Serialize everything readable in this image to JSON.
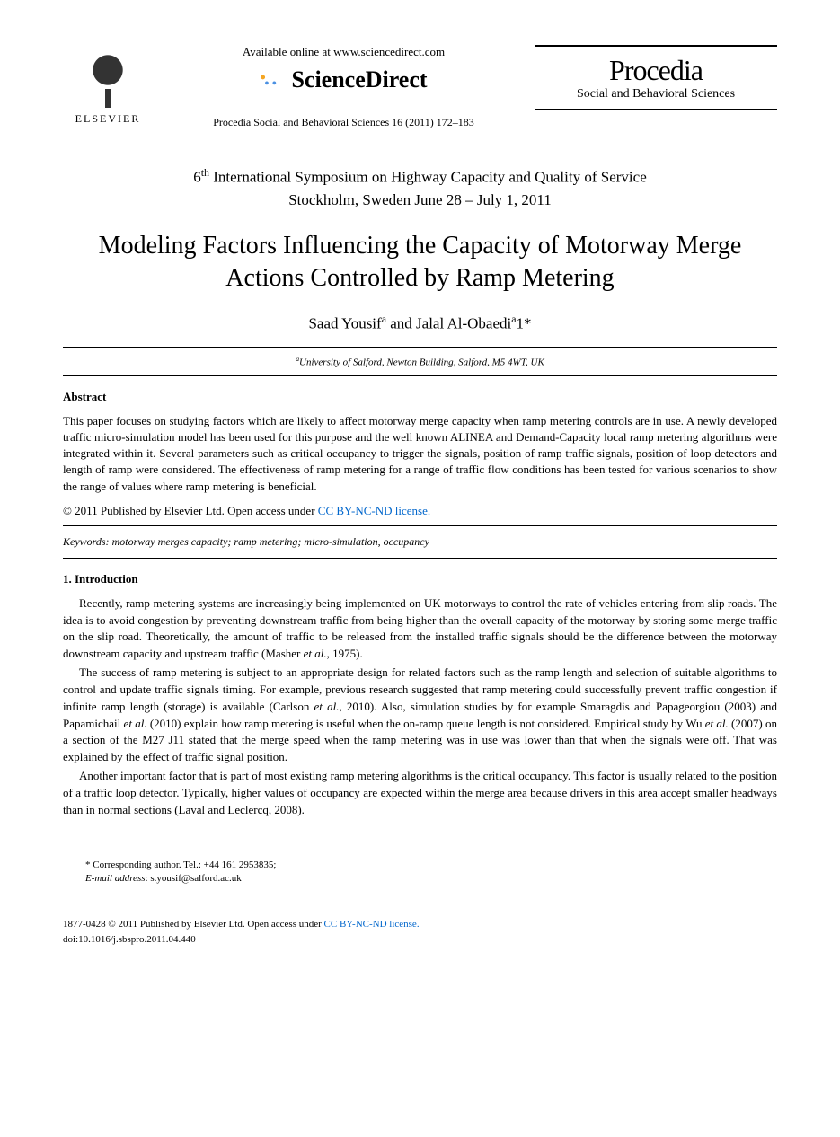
{
  "header": {
    "elsevier_label": "ELSEVIER",
    "available_online": "Available online at www.sciencedirect.com",
    "sciencedirect": "ScienceDirect",
    "citation": "Procedia Social and Behavioral Sciences 16 (2011) 172–183",
    "procedia_title": "Procedia",
    "procedia_subtitle": "Social and Behavioral Sciences"
  },
  "conference": {
    "line1": "6ᵗʰ International Symposium on Highway Capacity and Quality of Service",
    "line2": "Stockholm, Sweden June 28 – July 1, 2011"
  },
  "title": "Modeling Factors Influencing the Capacity of Motorway Merge Actions Controlled by Ramp Metering",
  "authors": "Saad Yousifᵃ and Jalal Al-Obaediᵃ1*",
  "affiliation": "ᵃUniversity of Salford, Newton Building, Salford, M5 4WT, UK",
  "abstract": {
    "heading": "Abstract",
    "text": "This paper focuses on studying factors which are likely to affect motorway merge capacity when ramp metering controls are in use. A newly developed traffic micro-simulation model has been used for this purpose and the well known ALINEA and Demand-Capacity local ramp metering algorithms were integrated within it. Several parameters such as critical occupancy to trigger the signals, position of ramp traffic signals, position of loop detectors and length of ramp were considered. The effectiveness of ramp metering for a range of traffic flow conditions has been tested for various scenarios to show the range of values where ramp metering is beneficial.",
    "copyright_prefix": "© 2011 Published by Elsevier Ltd.",
    "open_access": " Open access under ",
    "license": "CC BY-NC-ND license."
  },
  "keywords": {
    "label": "Keywords:",
    "text": " motorway merges capacity; ramp metering; micro-simulation, occupancy"
  },
  "introduction": {
    "heading": "1. Introduction",
    "p1": "Recently, ramp metering systems are increasingly being implemented on UK motorways to control the rate of vehicles entering from slip roads. The idea is to avoid congestion by preventing downstream traffic from being higher than the overall capacity of the motorway by storing some merge traffic on the slip road. Theoretically, the amount of traffic to be released from the installed traffic signals should be the difference between the motorway downstream capacity and upstream traffic (Masher et al., 1975).",
    "p2": "The success of ramp metering is subject to an appropriate design for related factors such as the ramp length and selection of suitable algorithms to control and update traffic signals timing. For example, previous research suggested that ramp metering could successfully prevent traffic congestion if infinite ramp length (storage) is available (Carlson et al., 2010). Also, simulation studies by for example Smaragdis and Papageorgiou (2003) and Papamichail et al. (2010) explain how ramp metering is useful when the on-ramp queue length is not considered. Empirical study by Wu et al. (2007) on a section of the M27 J11 stated that the merge speed when the ramp metering was in use was lower than that when the signals were off. That was explained by the effect of traffic signal position.",
    "p3": "Another important factor that is part of most existing ramp metering algorithms is the critical occupancy. This factor is usually related to the position of a traffic loop detector. Typically, higher values of occupancy are expected within the merge area because drivers in this area accept smaller headways than in normal sections (Laval and Leclercq, 2008)."
  },
  "footnote": {
    "corresponding": "* Corresponding author. Tel.: +44 161 2953835;",
    "email_label": "E-mail address",
    "email": ": s.yousif@salford.ac.uk"
  },
  "footer": {
    "issn_copyright": "1877-0428 © 2011 Published by Elsevier Ltd.",
    "open_access": " Open access under ",
    "license": "CC BY-NC-ND license.",
    "doi": "doi:10.1016/j.sbspro.2011.04.440"
  },
  "colors": {
    "link": "#0066cc",
    "text": "#000000",
    "background": "#ffffff"
  }
}
